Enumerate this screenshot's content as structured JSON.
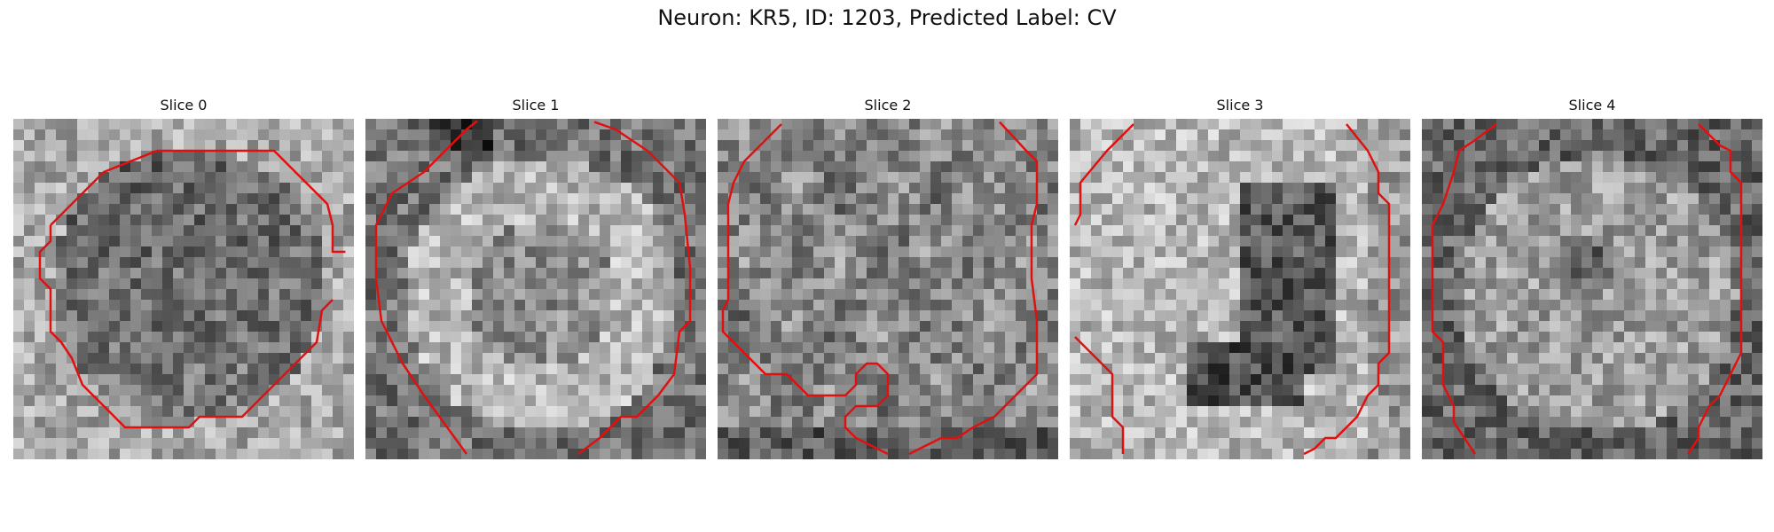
{
  "figure": {
    "title": "Neuron: KR5, ID: 1203, Predicted Label: CV"
  },
  "colors": {
    "contour": "#e01010"
  },
  "panels": [
    {
      "title": "Slice 0"
    },
    {
      "title": "Slice 1"
    },
    {
      "title": "Slice 2"
    },
    {
      "title": "Slice 3"
    },
    {
      "title": "Slice 4"
    }
  ]
}
